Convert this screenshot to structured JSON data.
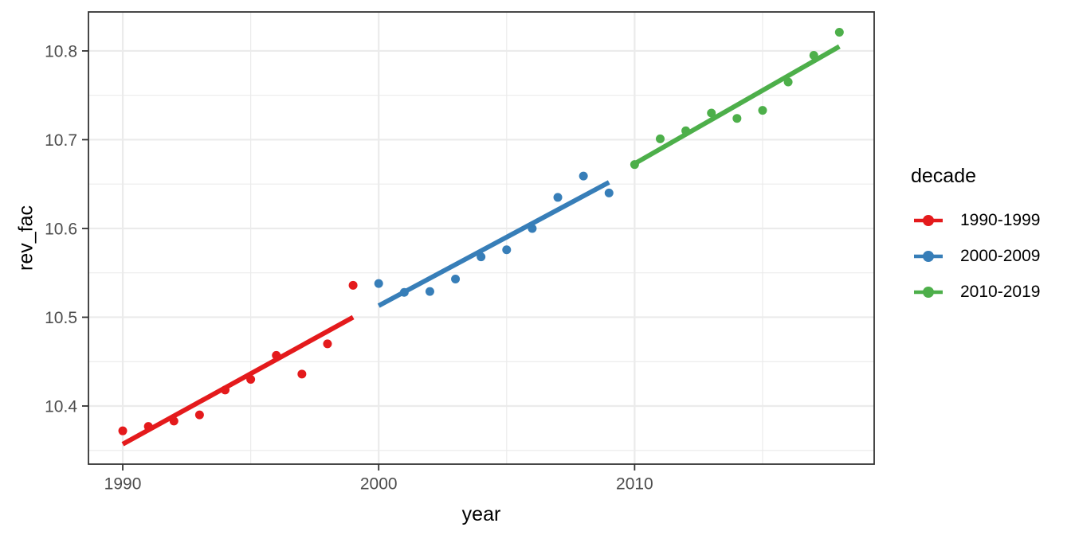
{
  "chart_data": {
    "type": "scatter",
    "title": "",
    "xlabel": "year",
    "ylabel": "rev_fac",
    "xlim": [
      1988.66,
      2019.36
    ],
    "ylim": [
      10.3345,
      10.8439
    ],
    "grid": "major and minor, light gray on white, dark panel border",
    "legend_position": "right",
    "legend_title": "decade",
    "x_ticks": [
      {
        "value": 1990,
        "label": "1990"
      },
      {
        "value": 2000,
        "label": "2000"
      },
      {
        "value": 2010,
        "label": "2010"
      }
    ],
    "y_ticks": [
      {
        "value": 10.4,
        "label": "10.4"
      },
      {
        "value": 10.5,
        "label": "10.5"
      },
      {
        "value": 10.6,
        "label": "10.6"
      },
      {
        "value": 10.7,
        "label": "10.7"
      },
      {
        "value": 10.8,
        "label": "10.8"
      }
    ],
    "x_minor_ticks": [
      1995,
      2005,
      2015
    ],
    "y_minor_ticks": [
      10.35,
      10.45,
      10.55,
      10.65,
      10.75
    ],
    "series": [
      {
        "name": "1990-1999",
        "color": "#E41A1C",
        "x": [
          1990,
          1991,
          1992,
          1993,
          1994,
          1995,
          1996,
          1997,
          1998,
          1999
        ],
        "y": [
          10.372,
          10.377,
          10.383,
          10.39,
          10.418,
          10.43,
          10.457,
          10.436,
          10.47,
          10.536
        ],
        "trend": {
          "x": [
            1990,
            1999
          ],
          "y": [
            10.357,
            10.5
          ]
        }
      },
      {
        "name": "2000-2009",
        "color": "#377EB8",
        "x": [
          2000,
          2001,
          2002,
          2003,
          2004,
          2005,
          2006,
          2007,
          2008,
          2009
        ],
        "y": [
          10.538,
          10.528,
          10.529,
          10.543,
          10.568,
          10.576,
          10.6,
          10.635,
          10.659,
          10.64
        ],
        "trend": {
          "x": [
            2000,
            2009
          ],
          "y": [
            10.513,
            10.652
          ]
        }
      },
      {
        "name": "2010-2019",
        "color": "#4DAF4A",
        "x": [
          2010,
          2011,
          2012,
          2013,
          2014,
          2015,
          2016,
          2017,
          2018
        ],
        "y": [
          10.672,
          10.701,
          10.71,
          10.73,
          10.724,
          10.733,
          10.765,
          10.795,
          10.821
        ],
        "trend": {
          "x": [
            2010,
            2018
          ],
          "y": [
            10.673,
            10.805
          ]
        }
      }
    ],
    "style": {
      "background": "#FFFFFF",
      "grid_color": "#EBEBEB",
      "panel_border_color": "#333333",
      "tick_color": "#333333",
      "tick_label_color": "#4D4D4D",
      "axis_title_color": "#000000",
      "point_radius": 5.5,
      "trend_line_width": 6,
      "tick_label_font_size": 21
    }
  }
}
